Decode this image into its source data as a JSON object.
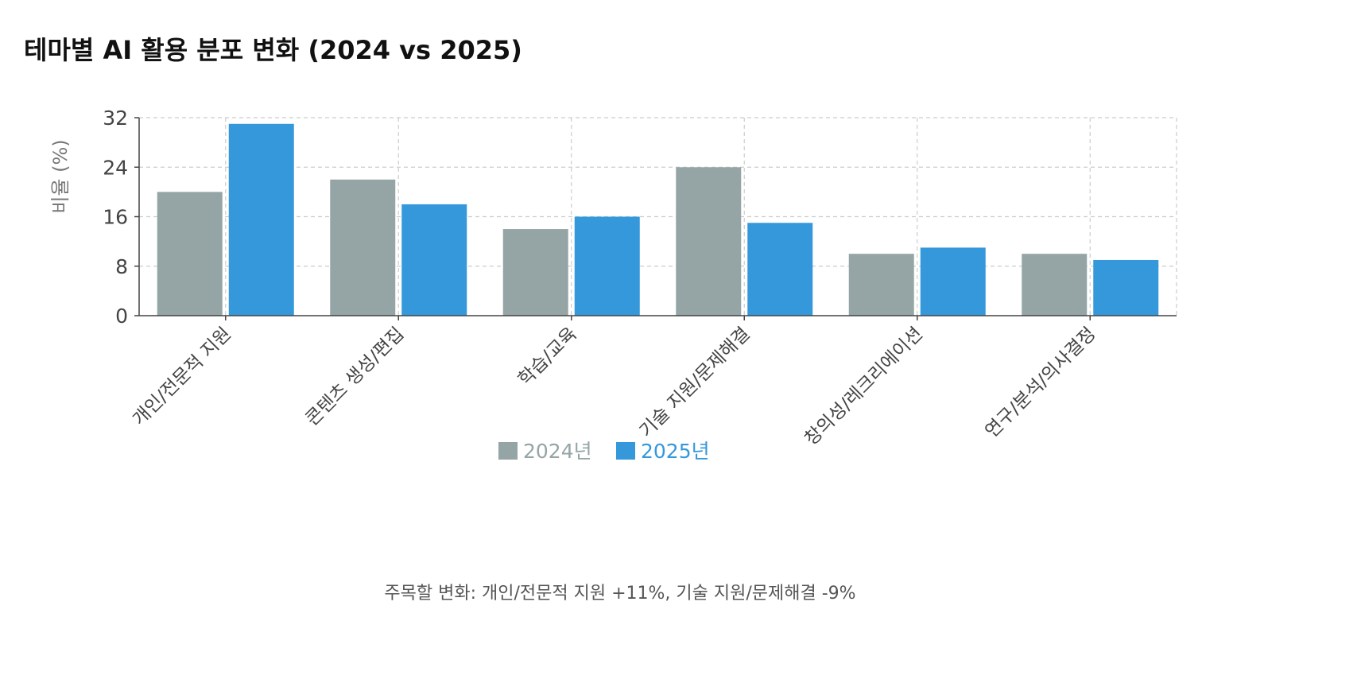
{
  "title": "테마별 AI 활용 분포 변화 (2024 vs 2025)",
  "footnote": "주목할 변화: 개인/전문적 지원 +11%, 기술 지원/문제해결 -9%",
  "chart_data": {
    "type": "bar",
    "categories": [
      "개인/전문적 지원",
      "콘텐츠 생성/편집",
      "학습/교육",
      "기술 지원/문제해결",
      "창의성/레크리에이션",
      "연구/분석/의사결정"
    ],
    "series": [
      {
        "name": "2024년",
        "values": [
          20,
          22,
          14,
          24,
          10,
          10
        ],
        "color": "#95a5a6"
      },
      {
        "name": "2025년",
        "values": [
          31,
          18,
          16,
          15,
          11,
          9
        ],
        "color": "#3498db"
      }
    ],
    "xlabel": "",
    "ylabel": "비율 (%)",
    "ylim": [
      0,
      32
    ],
    "yticks": [
      0,
      8,
      16,
      24,
      32
    ],
    "grid": true,
    "legend_position": "bottom-center"
  }
}
